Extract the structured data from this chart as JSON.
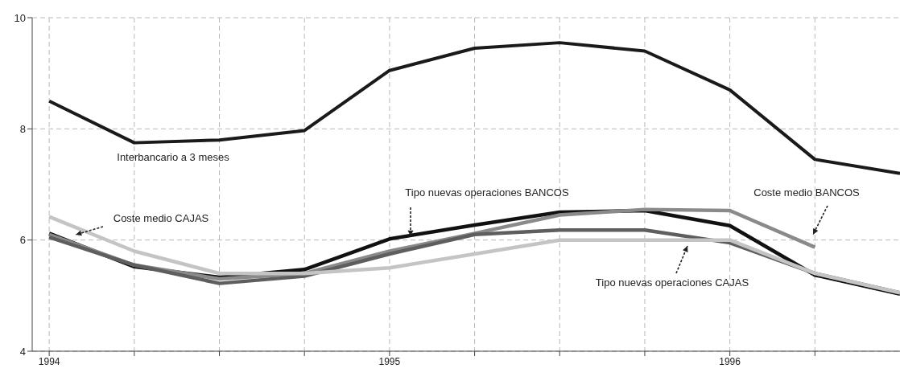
{
  "chart_data": {
    "type": "line",
    "x": [
      1994,
      1994.25,
      1994.5,
      1994.75,
      1995,
      1995.25,
      1995.5,
      1995.75,
      1996,
      1996.25,
      1996.5
    ],
    "series": [
      {
        "name": "Interbancario a 3 meses",
        "color": "#1a1a1a",
        "values": [
          8.5,
          7.75,
          7.8,
          7.97,
          9.05,
          9.45,
          9.55,
          9.4,
          8.7,
          7.45,
          7.2
        ]
      },
      {
        "name": "Tipo nuevas operaciones BANCOS",
        "color": "#111111",
        "values": [
          6.12,
          5.52,
          5.33,
          5.47,
          6.02,
          6.27,
          6.5,
          6.53,
          6.26,
          5.37,
          5.03
        ]
      },
      {
        "name": "Coste medio BANCOS",
        "color": "#8a8a8a",
        "values": [
          6.1,
          5.55,
          5.3,
          5.4,
          5.8,
          6.12,
          6.45,
          6.55,
          6.53,
          5.87,
          null
        ]
      },
      {
        "name": "Tipo nuevas operaciones CAJAS",
        "color": "#5e5e5e",
        "values": [
          6.05,
          5.55,
          5.22,
          5.35,
          5.75,
          6.1,
          6.18,
          6.18,
          5.95,
          5.4,
          5.05
        ]
      },
      {
        "name": "Coste medio CAJAS",
        "color": "#c4c4c4",
        "values": [
          6.42,
          5.8,
          5.4,
          5.4,
          5.5,
          5.75,
          6.0,
          6.0,
          6.0,
          5.4,
          5.05
        ]
      }
    ],
    "xlim": [
      1993.95,
      1996.5
    ],
    "xticks": [
      1994,
      {
        "value": 1994.25,
        "label": null
      },
      {
        "value": 1994.5,
        "label": null
      },
      {
        "value": 1994.75,
        "label": null
      },
      1995,
      {
        "value": 1995.25,
        "label": null
      },
      {
        "value": 1995.5,
        "label": null
      },
      {
        "value": 1995.75,
        "label": null
      },
      1996,
      {
        "value": 1996.25,
        "label": null
      }
    ],
    "ylim": [
      4,
      10
    ],
    "yticks": [
      4,
      6,
      8,
      10
    ],
    "grid": true,
    "marker": "none",
    "line_style": "solid"
  }
}
